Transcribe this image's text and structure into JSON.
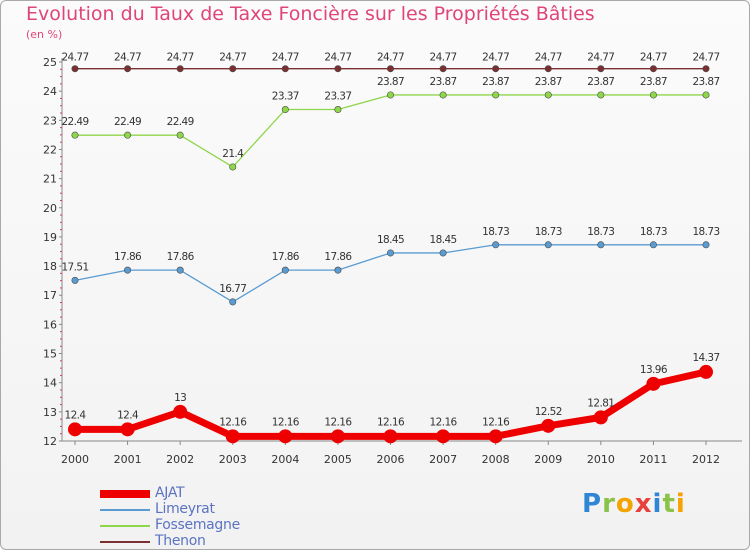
{
  "chart_data": {
    "type": "line",
    "title": "Evolution du Taux de Taxe Foncière sur les Propriétés Bâties",
    "subtitle": "(en %)",
    "x": [
      "2000",
      "2001",
      "2002",
      "2003",
      "2004",
      "2005",
      "2006",
      "2007",
      "2008",
      "2009",
      "2010",
      "2011",
      "2012"
    ],
    "ylim": [
      12,
      25
    ],
    "yticks": [
      12,
      13,
      14,
      15,
      16,
      17,
      18,
      19,
      20,
      21,
      22,
      23,
      24,
      25
    ],
    "grid": false,
    "legend_position": "bottom-left",
    "series": [
      {
        "name": "AJAT",
        "color": "#ee0000",
        "values": [
          12.4,
          12.4,
          13,
          12.16,
          12.16,
          12.16,
          12.16,
          12.16,
          12.16,
          12.52,
          12.81,
          13.96,
          14.37
        ],
        "labels": [
          "12.4",
          "12.4",
          "13",
          "12.16",
          "12.16",
          "12.16",
          "12.16",
          "12.16",
          "12.16",
          "12.52",
          "12.81",
          "13.96",
          "14.37"
        ]
      },
      {
        "name": "Limeyrat",
        "color": "#5a9bd1",
        "values": [
          17.51,
          17.86,
          17.86,
          16.77,
          17.86,
          17.86,
          18.45,
          18.45,
          18.73,
          18.73,
          18.73,
          18.73,
          18.73
        ],
        "labels": [
          "17.51",
          "17.86",
          "17.86",
          "16.77",
          "17.86",
          "17.86",
          "18.45",
          "18.45",
          "18.73",
          "18.73",
          "18.73",
          "18.73",
          "18.73"
        ]
      },
      {
        "name": "Fossemagne",
        "color": "#8ed64a",
        "values": [
          22.49,
          22.49,
          22.49,
          21.4,
          23.37,
          23.37,
          23.87,
          23.87,
          23.87,
          23.87,
          23.87,
          23.87,
          23.87
        ],
        "labels": [
          "22.49",
          "22.49",
          "22.49",
          "21.4",
          "23.37",
          "23.37",
          "23.87",
          "23.87",
          "23.87",
          "23.87",
          "23.87",
          "23.87",
          "23.87"
        ]
      },
      {
        "name": "Thenon",
        "color": "#7a3030",
        "values": [
          24.77,
          24.77,
          24.77,
          24.77,
          24.77,
          24.77,
          24.77,
          24.77,
          24.77,
          24.77,
          24.77,
          24.77,
          24.77
        ],
        "labels": [
          "24.77",
          "24.77",
          "24.77",
          "24.77",
          "24.77",
          "24.77",
          "24.77",
          "24.77",
          "24.77",
          "24.77",
          "24.77",
          "24.77",
          "24.77"
        ]
      }
    ]
  },
  "branding": {
    "logo_letters": [
      {
        "ch": "P",
        "color": "#2f86d6"
      },
      {
        "ch": "r",
        "color": "#8bc34a"
      },
      {
        "ch": "o",
        "color": "#f4a300"
      },
      {
        "ch": "x",
        "color": "#e8403a"
      },
      {
        "ch": "i",
        "color": "#2f86d6"
      },
      {
        "ch": "t",
        "color": "#8bc34a"
      },
      {
        "ch": "i",
        "color": "#f4a300"
      }
    ]
  }
}
